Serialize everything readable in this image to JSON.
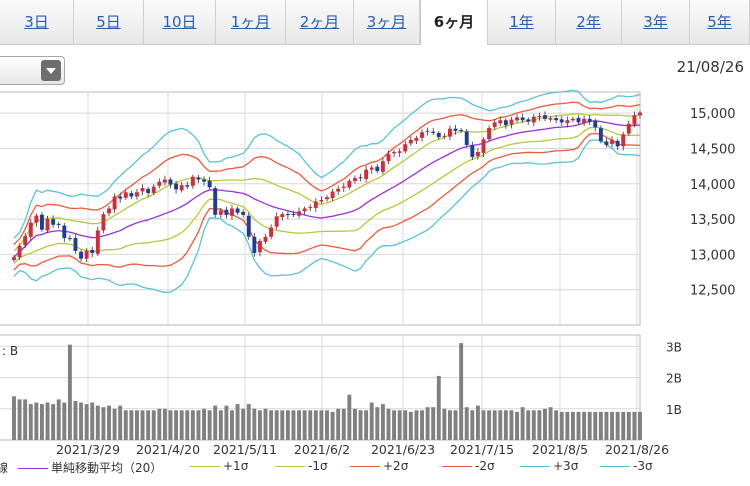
{
  "tabs": [
    {
      "label": "3日",
      "active": false
    },
    {
      "label": "5日",
      "active": false
    },
    {
      "label": "10日",
      "active": false
    },
    {
      "label": "1ヶ月",
      "active": false
    },
    {
      "label": "2ヶ月",
      "active": false
    },
    {
      "label": "3ヶ月",
      "active": false
    },
    {
      "label": "6ヶ月",
      "active": true
    },
    {
      "label": "1年",
      "active": false
    },
    {
      "label": "2年",
      "active": false
    },
    {
      "label": "3年",
      "active": false
    },
    {
      "label": "5年",
      "active": false
    }
  ],
  "chart_date": "21/08/26",
  "volume_label": "B",
  "legend_prefix": "線",
  "chart_data": {
    "type": "candlestick_with_bollinger",
    "x_tick_labels": [
      "2021/3/29",
      "2021/4/20",
      "2021/5/11",
      "2021/6/2",
      "2021/6/23",
      "2021/7/15",
      "2021/8/5",
      "2021/8/26"
    ],
    "price_axis": {
      "ticks": [
        15000,
        14500,
        14000,
        13500,
        13000,
        12500
      ],
      "range": [
        12000,
        15300
      ]
    },
    "volume_axis": {
      "ticks": [
        "3B",
        "2B",
        "1B"
      ],
      "tick_values": [
        3,
        2,
        1
      ],
      "range": [
        0,
        3.2
      ]
    },
    "closes": [
      12960,
      13120,
      13260,
      13450,
      13550,
      13350,
      13500,
      13420,
      13420,
      13230,
      13220,
      13050,
      12940,
      13050,
      13020,
      13340,
      13570,
      13650,
      13820,
      13790,
      13880,
      13820,
      13880,
      13940,
      13870,
      13960,
      14030,
      14060,
      13990,
      13920,
      13980,
      13960,
      14100,
      14060,
      14030,
      13950,
      13560,
      13620,
      13560,
      13650,
      13590,
      13560,
      13250,
      13020,
      13190,
      13250,
      13380,
      13540,
      13570,
      13560,
      13560,
      13610,
      13650,
      13670,
      13750,
      13770,
      13810,
      13890,
      13930,
      13960,
      14040,
      14080,
      14080,
      14200,
      14230,
      14180,
      14320,
      14420,
      14450,
      14460,
      14560,
      14620,
      14650,
      14730,
      14750,
      14720,
      14660,
      14680,
      14780,
      14750,
      14750,
      14550,
      14380,
      14450,
      14630,
      14790,
      14870,
      14900,
      14830,
      14910,
      14940,
      14900,
      14880,
      14950,
      14960,
      14920,
      14930,
      14900,
      14870,
      14900,
      14920,
      14870,
      14920,
      14880,
      14800,
      14600,
      14550,
      14620,
      14530,
      14700,
      14850,
      14970,
      15010
    ],
    "volume": [
      1.4,
      1.3,
      1.3,
      1.15,
      1.2,
      1.15,
      1.2,
      1.15,
      1.3,
      1.2,
      3.05,
      1.25,
      1.2,
      1.15,
      1.2,
      1.1,
      1.05,
      1.1,
      1.0,
      1.1,
      0.95,
      0.95,
      0.95,
      0.95,
      0.95,
      0.95,
      1.0,
      1.0,
      0.95,
      0.95,
      0.95,
      0.95,
      0.95,
      0.95,
      1.0,
      0.95,
      1.1,
      0.95,
      1.1,
      0.95,
      1.15,
      1.0,
      1.15,
      1.0,
      0.95,
      1.0,
      0.95,
      0.95,
      0.95,
      0.95,
      0.95,
      0.95,
      0.95,
      0.95,
      0.95,
      0.95,
      0.95,
      0.9,
      1.0,
      1.0,
      1.45,
      1.0,
      0.95,
      0.95,
      1.2,
      1.05,
      1.15,
      1.0,
      0.95,
      0.95,
      0.95,
      0.9,
      0.95,
      0.95,
      1.05,
      1.05,
      2.05,
      1.0,
      0.95,
      0.95,
      3.1,
      1.05,
      0.95,
      1.1,
      0.95,
      0.95,
      0.95,
      0.95,
      0.95,
      0.95,
      0.9,
      1.05,
      0.95,
      0.95,
      0.95,
      1.0,
      1.05,
      0.95,
      0.9,
      0.9,
      0.9,
      0.9,
      0.9,
      0.9,
      0.9,
      0.9,
      0.9,
      0.9,
      0.9,
      0.9,
      0.9,
      0.9,
      0.9
    ],
    "indicators": [
      {
        "label": "単純移動平均（20）",
        "color": "#9b30d9",
        "k": 0
      },
      {
        "label": "+1σ",
        "color": "#b8c93a",
        "k": 1
      },
      {
        "label": "-1σ",
        "color": "#b8c93a",
        "k": -1
      },
      {
        "label": "+2σ",
        "color": "#ee5a3a",
        "k": 2
      },
      {
        "label": "-2σ",
        "color": "#ee5a3a",
        "k": -2
      },
      {
        "label": "+3σ",
        "color": "#56c3da",
        "k": 3
      },
      {
        "label": "-3σ",
        "color": "#56c3da",
        "k": -3
      }
    ],
    "up_color": "#d42a3a",
    "down_color": "#1f3c99"
  }
}
